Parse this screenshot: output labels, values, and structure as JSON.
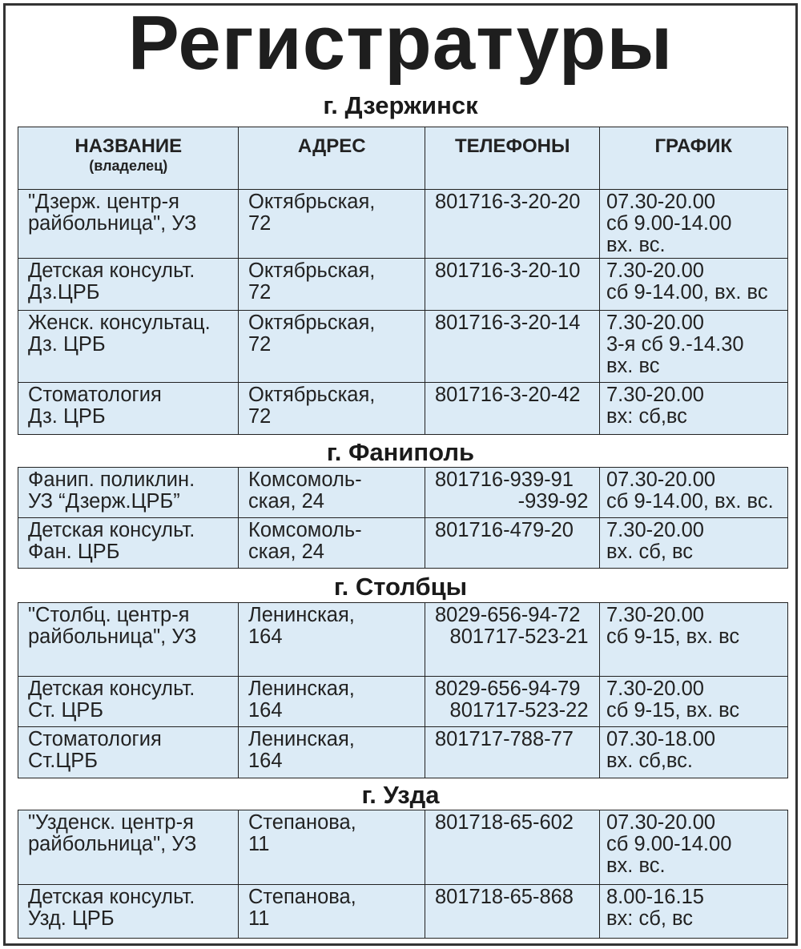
{
  "title": "Регистратуры",
  "header": [
    [
      "НАЗВАНИЕ",
      "(владелец)"
    ],
    [
      "АДРЕС"
    ],
    [
      "ТЕЛЕФОНЫ"
    ],
    [
      "ГРАФИК"
    ]
  ],
  "sections": [
    {
      "city": "г. Дзержинск",
      "rows": [
        [
          [
            "\"Дзерж. центр-я",
            "райбольница\", УЗ"
          ],
          [
            "Октябрьская,",
            "72"
          ],
          [
            "801716-3-20-20"
          ],
          [
            "07.30-20.00",
            "сб 9.00-14.00",
            "вх. вс."
          ]
        ],
        [
          [
            "Детская консульт.",
            "Дз.ЦРБ"
          ],
          [
            "Октябрьская,",
            "72"
          ],
          [
            "801716-3-20-10"
          ],
          [
            "7.30-20.00",
            "сб 9-14.00, вх. вс"
          ]
        ],
        [
          [
            "Женск. консультац.",
            "Дз. ЦРБ"
          ],
          [
            "Октябрьская,",
            "72"
          ],
          [
            "801716-3-20-14"
          ],
          [
            "7.30-20.00",
            "3-я сб 9.-14.30",
            "вх. вс"
          ]
        ],
        [
          [
            "Стоматология",
            "Дз. ЦРБ"
          ],
          [
            "Октябрьская,",
            "72"
          ],
          [
            "801716-3-20-42"
          ],
          [
            "7.30-20.00",
            "вх: сб,вс"
          ]
        ]
      ]
    },
    {
      "city": "г. Фаниполь",
      "rows": [
        [
          [
            "Фанип. поликлин.",
            "УЗ “Дзерж.ЦРБ”"
          ],
          [
            "Комсомоль-",
            "ская, 24"
          ],
          [
            "801716-939-91",
            "-939-92"
          ],
          [
            "07.30-20.00",
            "сб 9-14.00, вх. вс."
          ]
        ],
        [
          [
            "Детская консульт.",
            "Фан. ЦРБ"
          ],
          [
            "Комсомоль-",
            "ская, 24"
          ],
          [
            "801716-479-20"
          ],
          [
            "7.30-20.00",
            "вх. сб, вс"
          ]
        ]
      ]
    },
    {
      "city": "г. Столбцы",
      "rows": [
        [
          [
            "\"Столбц. центр-я",
            "райбольница\", УЗ"
          ],
          [
            "Ленинская,",
            "164"
          ],
          [
            "8029-656-94-72",
            "801717-523-21"
          ],
          [
            "7.30-20.00",
            "сб 9-15, вх. вс"
          ]
        ],
        [
          [
            "Детская консульт.",
            "Ст. ЦРБ"
          ],
          [
            "Ленинская,",
            "164"
          ],
          [
            "8029-656-94-79",
            "801717-523-22"
          ],
          [
            "7.30-20.00",
            "сб 9-15, вх. вс"
          ]
        ],
        [
          [
            "Стоматология",
            "Ст.ЦРБ"
          ],
          [
            "Ленинская,",
            "164"
          ],
          [
            "801717-788-77"
          ],
          [
            "07.30-18.00",
            "вх. сб,вс."
          ]
        ]
      ]
    },
    {
      "city": "г. Узда",
      "rows": [
        [
          [
            "\"Узденск. центр-я",
            "райбольница\", УЗ"
          ],
          [
            "Степанова,",
            "11"
          ],
          [
            "801718-65-602"
          ],
          [
            "07.30-20.00",
            "сб 9.00-14.00",
            "вх. вс."
          ]
        ],
        [
          [
            "Детская консульт.",
            "Узд. ЦРБ"
          ],
          [
            "Степанова,",
            "11"
          ],
          [
            "801718-65-868"
          ],
          [
            "8.00-16.15",
            "вх: сб, вс"
          ]
        ]
      ]
    }
  ]
}
